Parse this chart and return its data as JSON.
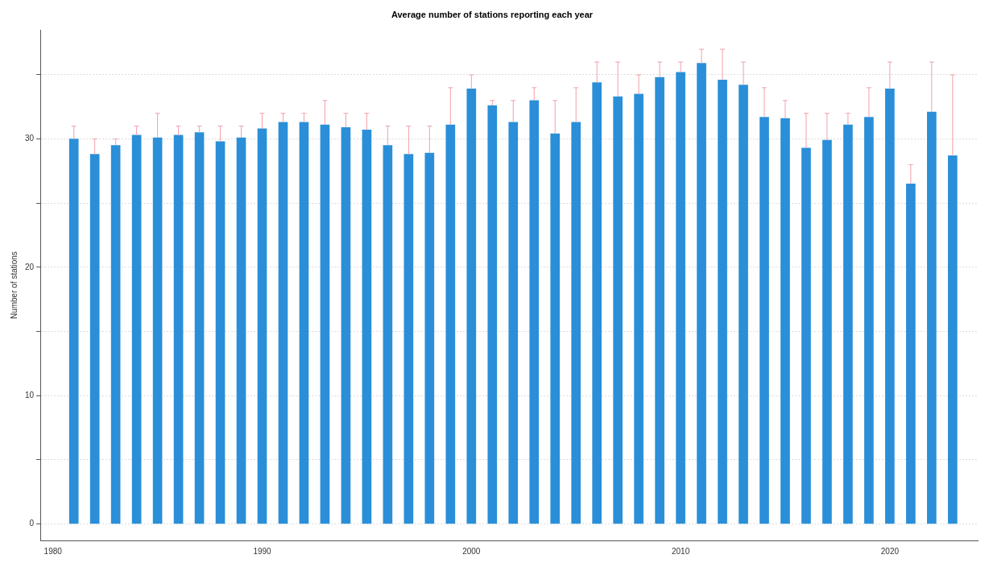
{
  "chart_data": {
    "type": "bar",
    "title": "Average number of stations reporting each year",
    "ylabel": "Number of stations",
    "x": [
      1981,
      1982,
      1983,
      1984,
      1985,
      1986,
      1987,
      1988,
      1989,
      1990,
      1991,
      1992,
      1993,
      1994,
      1995,
      1996,
      1997,
      1998,
      1999,
      2000,
      2001,
      2002,
      2003,
      2004,
      2005,
      2006,
      2007,
      2008,
      2009,
      2010,
      2011,
      2012,
      2013,
      2014,
      2015,
      2016,
      2017,
      2018,
      2019,
      2020,
      2021,
      2022,
      2023
    ],
    "values": [
      30.0,
      28.8,
      29.5,
      30.3,
      30.1,
      30.3,
      30.5,
      29.8,
      30.1,
      30.8,
      31.3,
      31.3,
      31.1,
      30.9,
      30.7,
      29.5,
      28.8,
      28.9,
      31.1,
      33.9,
      32.6,
      31.3,
      33.0,
      30.4,
      31.3,
      34.4,
      33.3,
      33.5,
      34.8,
      35.2,
      35.9,
      34.6,
      34.2,
      31.7,
      31.6,
      29.3,
      29.9,
      31.1,
      31.7,
      33.9,
      26.5,
      32.1,
      28.7
    ],
    "errors": [
      [
        30.0,
        31
      ],
      [
        28.8,
        30
      ],
      [
        29.5,
        30
      ],
      [
        30.3,
        31
      ],
      [
        30.1,
        32
      ],
      [
        30.3,
        31
      ],
      [
        30.5,
        31
      ],
      [
        29.8,
        31
      ],
      [
        30.1,
        31
      ],
      [
        30.8,
        32
      ],
      [
        31.3,
        32
      ],
      [
        31.3,
        32
      ],
      [
        31.1,
        33
      ],
      [
        30.9,
        32
      ],
      [
        30.7,
        32
      ],
      [
        29.5,
        31
      ],
      [
        28.8,
        31
      ],
      [
        28.9,
        31
      ],
      [
        31.1,
        34
      ],
      [
        33.9,
        35
      ],
      [
        32.6,
        33
      ],
      [
        31.3,
        33
      ],
      [
        33.0,
        34
      ],
      [
        30.4,
        33
      ],
      [
        31.3,
        34
      ],
      [
        34.4,
        36
      ],
      [
        33.3,
        36
      ],
      [
        33.5,
        35
      ],
      [
        34.8,
        36
      ],
      [
        35.2,
        36
      ],
      [
        35.9,
        37
      ],
      [
        34.6,
        37
      ],
      [
        34.2,
        36
      ],
      [
        31.7,
        34
      ],
      [
        31.6,
        33
      ],
      [
        29.3,
        32
      ],
      [
        29.9,
        32
      ],
      [
        31.1,
        32
      ],
      [
        31.7,
        34
      ],
      [
        33.9,
        36
      ],
      [
        26.5,
        28
      ],
      [
        32.1,
        36
      ],
      [
        28.7,
        35
      ]
    ],
    "color": "#2a8fd8",
    "xlim": [
      1979.4,
      2024.2
    ],
    "xticks": [
      1980,
      1990,
      2000,
      2010,
      2020
    ],
    "ylim": [
      -1.3,
      38.5
    ],
    "yticks": [
      0,
      {
        "value": 5,
        "label": null
      },
      10,
      {
        "value": 15,
        "label": null
      },
      20,
      {
        "value": 25,
        "label": null
      },
      30,
      {
        "value": 35,
        "label": null
      }
    ],
    "grid": "y",
    "legend": false
  }
}
